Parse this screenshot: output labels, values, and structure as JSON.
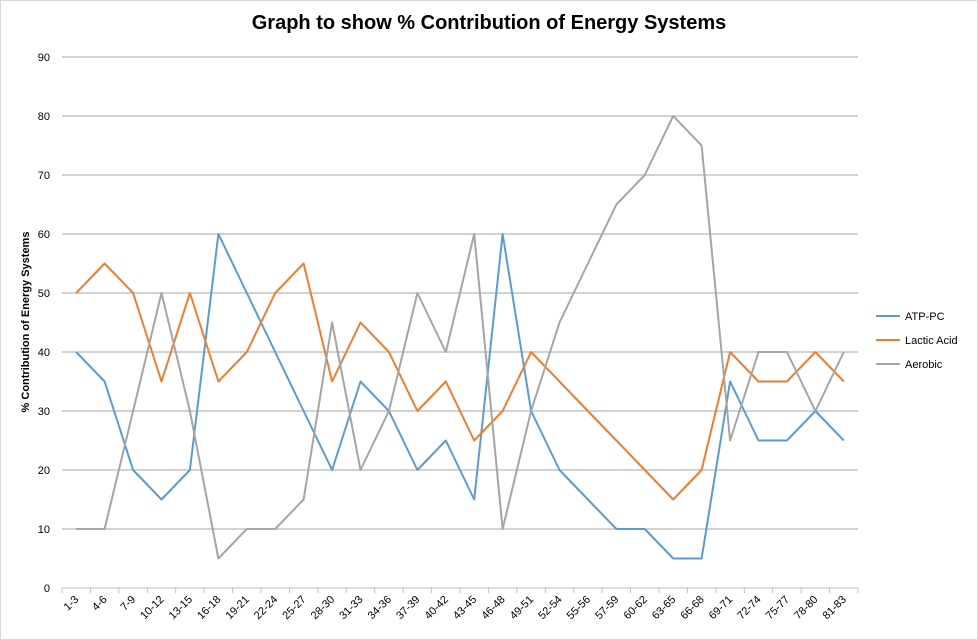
{
  "chart_data": {
    "type": "line",
    "title": "Graph to show % Contribution of Energy Systems",
    "xlabel": "",
    "ylabel": "% Contribution of Energy Systems",
    "ylim": [
      0,
      90
    ],
    "yticks": [
      "0",
      "10",
      "20",
      "30",
      "40",
      "50",
      "60",
      "70",
      "80",
      "90"
    ],
    "grid": true,
    "legend_position": "right",
    "categories": [
      "1-3",
      "4-6",
      "7-9",
      "10-12",
      "13-15",
      "16-18",
      "19-21",
      "22-24",
      "25-27",
      "28-30",
      "31-33",
      "34-36",
      "37-39",
      "40-42",
      "43-45",
      "46-48",
      "49-51",
      "52-54",
      "55-56",
      "57-59",
      "60-62",
      "63-65",
      "66-68",
      "69-71",
      "72-74",
      "75-77",
      "78-80",
      "81-83"
    ],
    "series": [
      {
        "name": "ATP-PC",
        "color": "#5b9bd5",
        "values": [
          40,
          35,
          20,
          15,
          20,
          60,
          50,
          40,
          30,
          20,
          35,
          30,
          20,
          25,
          15,
          60,
          30,
          20,
          15,
          10,
          10,
          5,
          5,
          35,
          25,
          25,
          30,
          25
        ]
      },
      {
        "name": "Lactic Acid",
        "color": "#ed7d31",
        "values": [
          50,
          55,
          50,
          35,
          50,
          35,
          40,
          50,
          55,
          35,
          45,
          40,
          30,
          35,
          25,
          30,
          40,
          35,
          30,
          25,
          20,
          15,
          20,
          40,
          35,
          35,
          40,
          35
        ]
      },
      {
        "name": "Aerobic",
        "color": "#a5a5a5",
        "values": [
          10,
          10,
          30,
          50,
          30,
          5,
          10,
          10,
          15,
          45,
          20,
          30,
          50,
          40,
          60,
          10,
          30,
          45,
          55,
          65,
          70,
          80,
          75,
          25,
          40,
          40,
          30,
          40
        ]
      }
    ]
  }
}
